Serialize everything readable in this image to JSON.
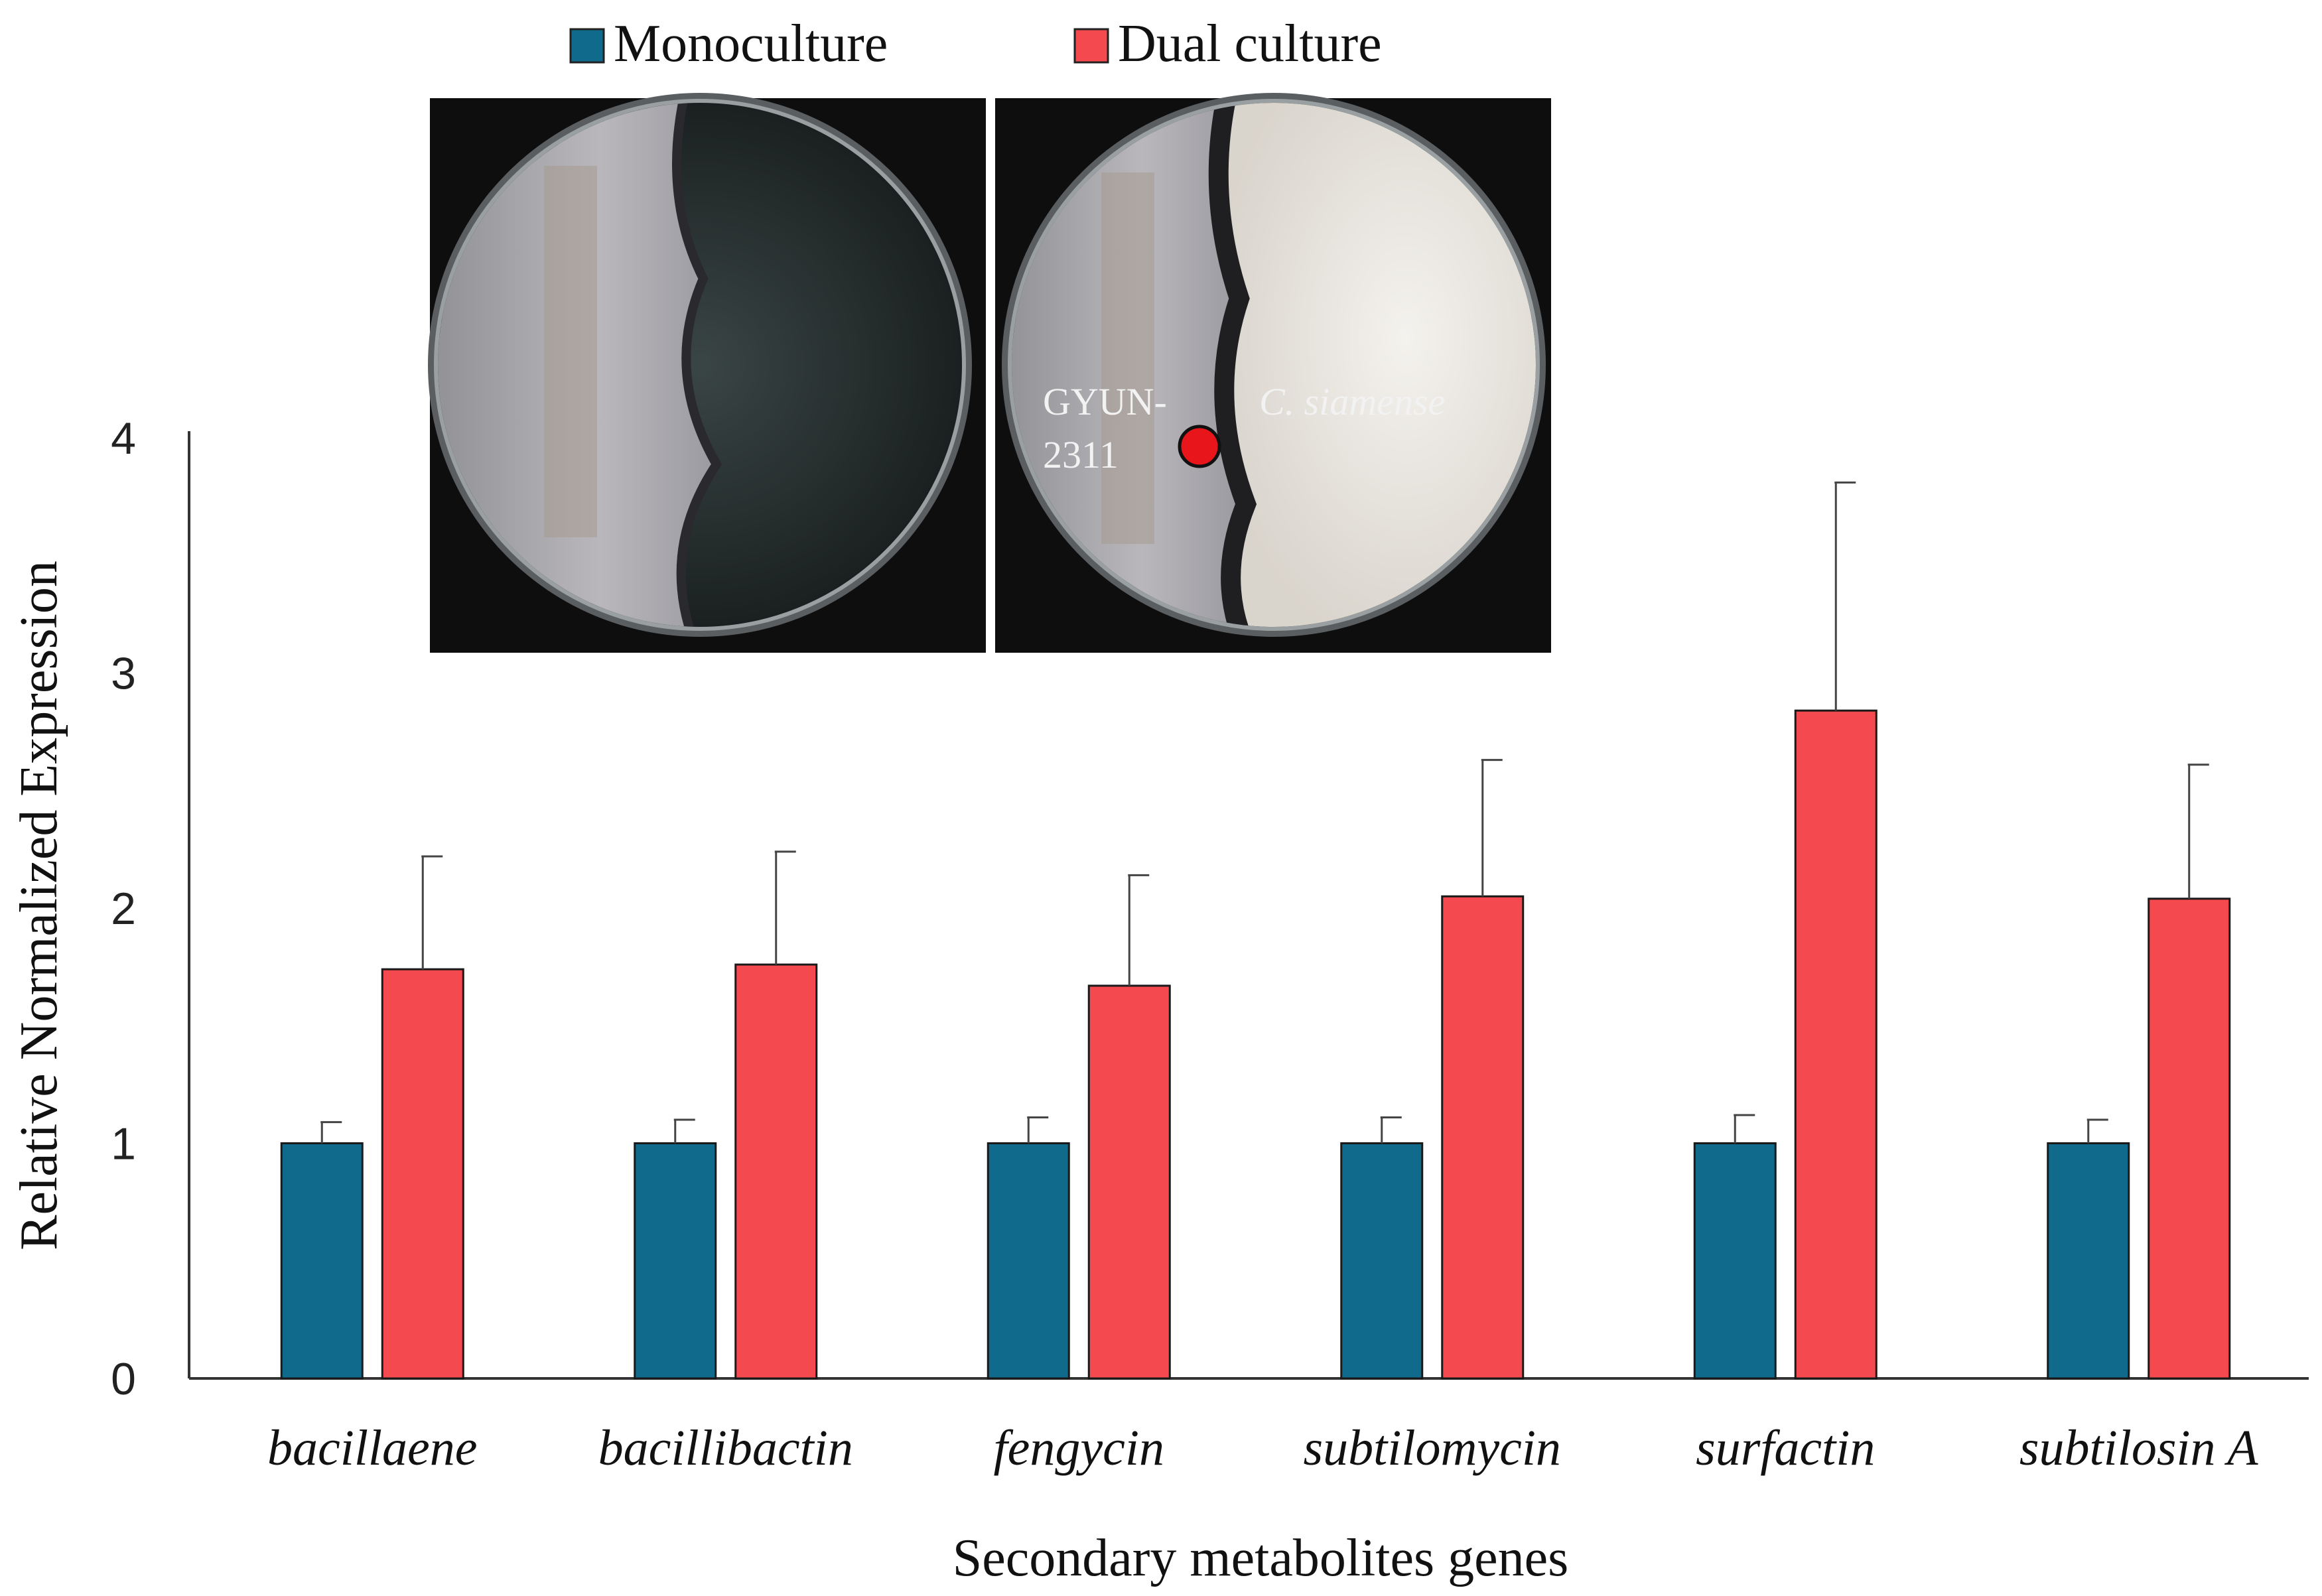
{
  "chart_data": {
    "type": "bar",
    "title": "",
    "xlabel": "Secondary metabolites genes",
    "ylabel": "Relative Normalized Expression",
    "ylim": [
      0,
      4
    ],
    "yticks": [
      "0",
      "1",
      "2",
      "3",
      "4"
    ],
    "categories": [
      "bacillaene",
      "bacillibactin",
      "fengycin",
      "subtilomycin",
      "surfactin",
      "subtilosin A"
    ],
    "series": [
      {
        "name": "Monoculture",
        "color": "#0f6a8c",
        "values": [
          1.0,
          1.0,
          1.0,
          1.0,
          1.0,
          1.0
        ],
        "errors": [
          0.09,
          0.1,
          0.11,
          0.11,
          0.12,
          0.1
        ]
      },
      {
        "name": "Dual culture",
        "color": "#f44a4f",
        "values": [
          1.74,
          1.76,
          1.67,
          2.05,
          2.84,
          2.04
        ],
        "errors": [
          0.48,
          0.48,
          0.47,
          0.58,
          0.97,
          0.57
        ]
      }
    ],
    "legend_position": "top-center",
    "grid": false
  },
  "inset": {
    "labels": {
      "strain": "GYUN-\n2311",
      "strain_line1": "GYUN-",
      "strain_line2": "2311",
      "pathogen": "C. siamense"
    },
    "marker_color": "#e8161b"
  }
}
